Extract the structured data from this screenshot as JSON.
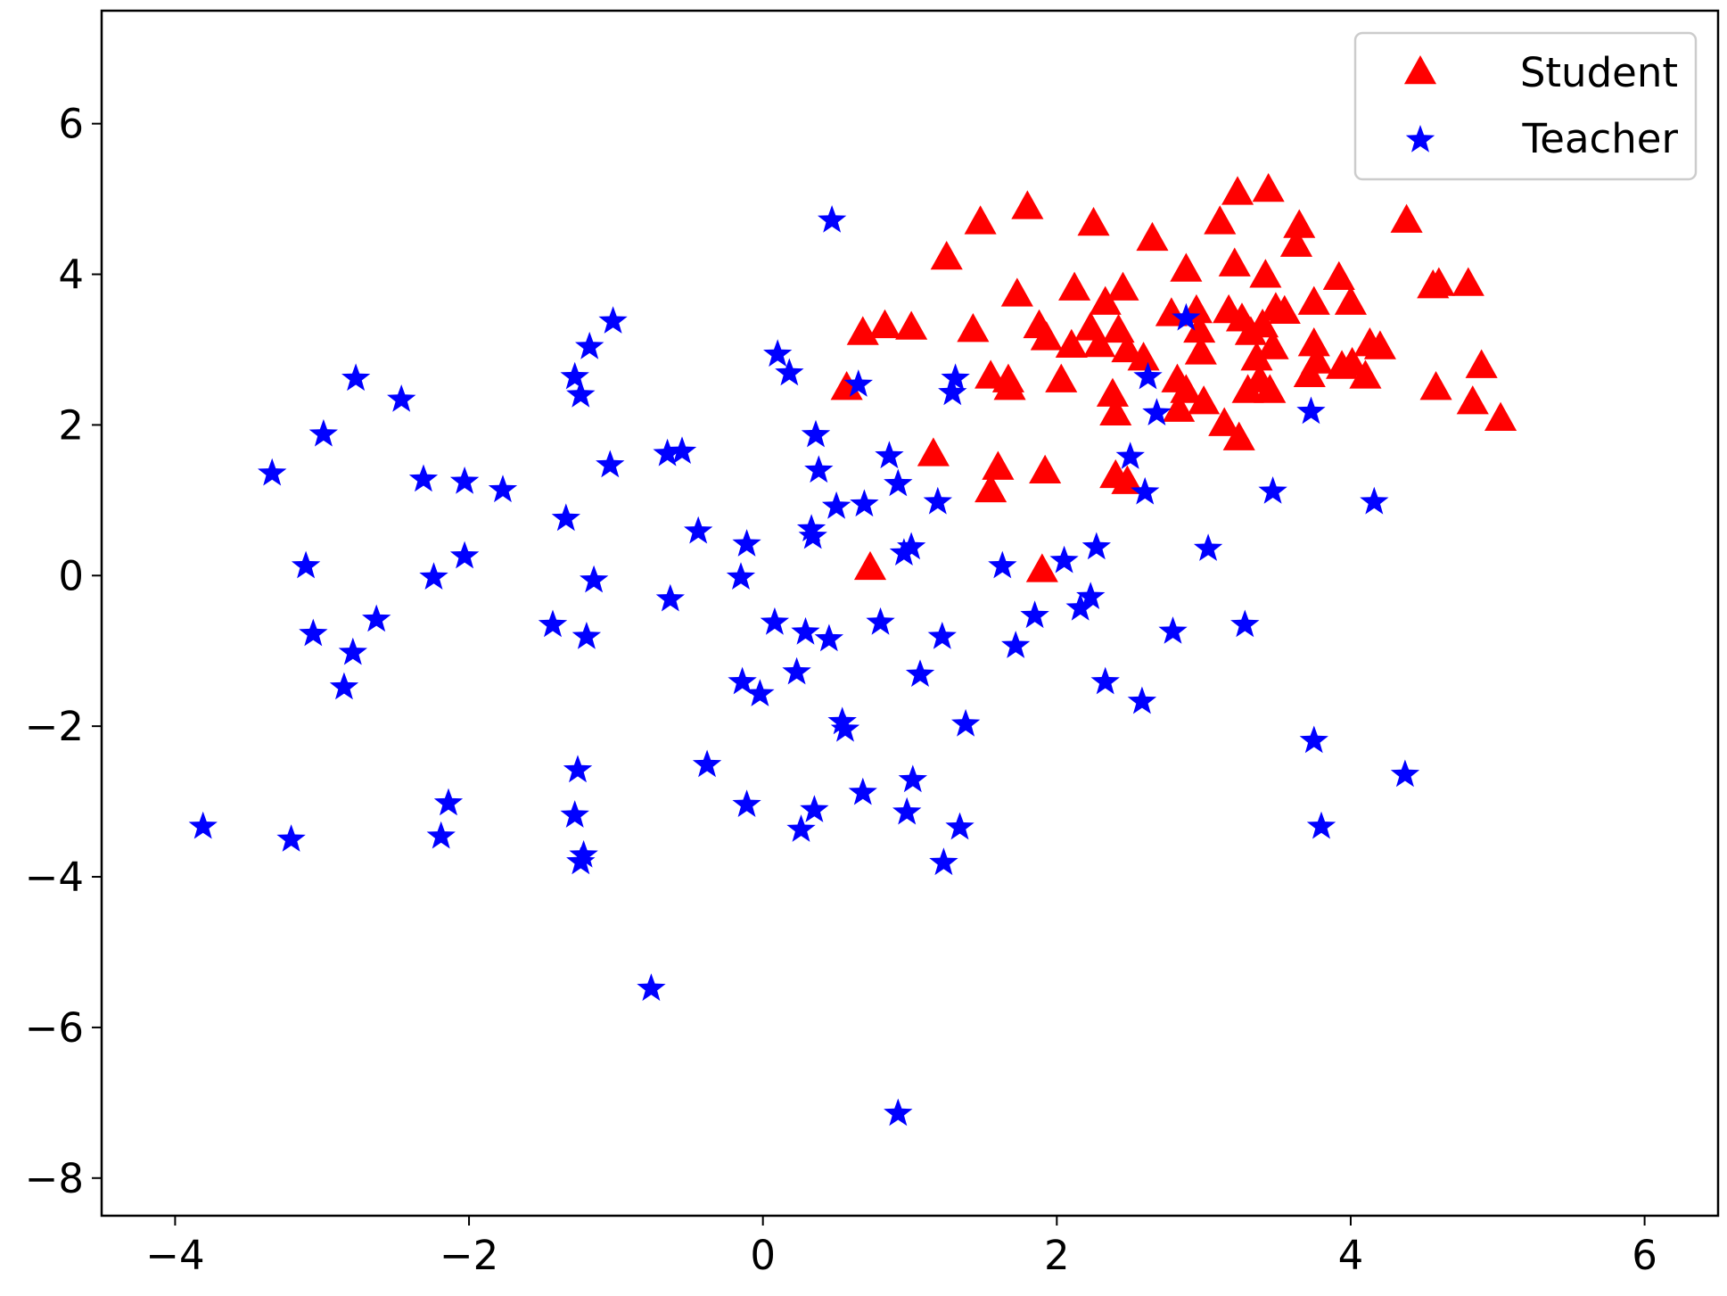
{
  "chart_data": {
    "type": "scatter",
    "xlim": [
      -4.5,
      6.5
    ],
    "ylim": [
      -8.5,
      7.5
    ],
    "xticks": [
      {
        "value": -4,
        "label": "−4"
      },
      {
        "value": -2,
        "label": "−2"
      },
      0,
      2,
      4,
      6
    ],
    "yticks": [
      {
        "value": -8,
        "label": "−8"
      },
      {
        "value": -6,
        "label": "−6"
      },
      {
        "value": -4,
        "label": "−4"
      },
      {
        "value": -2,
        "label": "−2"
      },
      0,
      2,
      4,
      6
    ],
    "legend": "upper right",
    "series": [
      {
        "name": "Student",
        "color": "#ff0000",
        "marker": "triangle",
        "x": [
          0.57,
          0.68,
          0.83,
          1.01,
          0.73,
          1.16,
          1.25,
          1.43,
          1.48,
          1.55,
          1.6,
          1.55,
          1.67,
          1.68,
          1.73,
          1.8,
          1.88,
          1.92,
          1.93,
          1.9,
          2.03,
          2.1,
          2.12,
          2.23,
          2.25,
          2.29,
          2.33,
          2.38,
          2.4,
          2.42,
          2.45,
          2.48,
          2.4,
          2.48,
          2.59,
          2.65,
          2.78,
          2.82,
          2.83,
          2.88,
          2.88,
          2.95,
          2.98,
          3.0,
          2.97,
          3.11,
          3.14,
          3.17,
          3.21,
          3.23,
          3.24,
          3.26,
          3.3,
          3.32,
          3.36,
          3.38,
          3.4,
          3.42,
          3.44,
          3.45,
          3.47,
          3.49,
          3.55,
          3.65,
          3.63,
          3.72,
          3.75,
          3.75,
          3.77,
          3.92,
          3.94,
          4.0,
          4.01,
          4.1,
          4.13,
          4.2,
          4.38,
          4.56,
          4.6,
          4.58,
          4.8,
          4.83,
          4.89,
          5.02
        ],
        "y": [
          2.49,
          3.22,
          3.31,
          3.29,
          0.1,
          1.61,
          4.22,
          3.26,
          4.69,
          2.64,
          1.43,
          1.13,
          2.59,
          2.49,
          3.73,
          4.89,
          3.31,
          1.38,
          3.15,
          0.07,
          2.59,
          3.05,
          3.81,
          3.28,
          4.67,
          3.06,
          3.62,
          2.4,
          2.15,
          3.25,
          3.81,
          2.99,
          1.32,
          1.24,
          2.88,
          4.47,
          3.47,
          2.59,
          2.2,
          4.06,
          2.45,
          3.51,
          2.96,
          2.3,
          3.25,
          4.69,
          2.01,
          3.51,
          4.13,
          5.08,
          1.82,
          3.4,
          2.45,
          3.22,
          2.88,
          2.59,
          3.32,
          3.98,
          5.12,
          2.45,
          3.03,
          3.54,
          3.5,
          4.64,
          4.39,
          2.66,
          3.62,
          3.07,
          2.84,
          3.95,
          2.77,
          3.62,
          2.81,
          2.64,
          3.07,
          3.03,
          4.71,
          3.84,
          3.87,
          2.49,
          3.87,
          2.3,
          2.78,
          2.08
        ]
      },
      {
        "name": "Teacher",
        "color": "#0000ff",
        "marker": "star",
        "x": [
          -3.81,
          -3.34,
          -3.21,
          -3.11,
          -3.06,
          -2.99,
          -2.85,
          -2.79,
          -2.77,
          -2.63,
          -2.46,
          -2.31,
          -2.24,
          -2.19,
          -2.14,
          -2.03,
          -2.03,
          -1.77,
          -1.43,
          -1.34,
          -1.28,
          -1.28,
          -1.26,
          -1.24,
          -1.24,
          -1.22,
          -1.2,
          -1.18,
          -1.15,
          -1.04,
          -1.02,
          -0.76,
          -0.63,
          -0.65,
          -0.55,
          -0.44,
          -0.38,
          -0.15,
          -0.14,
          -0.11,
          -0.11,
          -0.02,
          0.08,
          0.1,
          0.18,
          0.23,
          0.26,
          0.29,
          0.34,
          0.33,
          0.35,
          0.36,
          0.38,
          0.45,
          0.47,
          0.5,
          0.54,
          0.56,
          0.65,
          0.68,
          0.69,
          0.8,
          0.86,
          0.92,
          0.92,
          0.96,
          0.98,
          1.01,
          1.02,
          1.07,
          1.19,
          1.22,
          1.23,
          1.29,
          1.31,
          1.34,
          1.38,
          1.63,
          1.72,
          1.85,
          2.05,
          2.16,
          2.23,
          2.27,
          2.33,
          2.5,
          2.58,
          2.6,
          2.62,
          2.68,
          2.79,
          2.88,
          3.03,
          3.28,
          3.47,
          3.73,
          3.75,
          3.8,
          4.16,
          4.37
        ],
        "y": [
          -3.31,
          1.38,
          -3.48,
          0.15,
          -0.75,
          1.9,
          -1.46,
          -1.0,
          2.64,
          -0.56,
          2.36,
          1.3,
          0.0,
          -3.44,
          -3.0,
          1.27,
          0.28,
          1.16,
          -0.63,
          0.78,
          -3.16,
          2.66,
          -2.56,
          2.42,
          -3.78,
          -3.69,
          -0.79,
          3.06,
          -0.04,
          1.49,
          3.4,
          -5.46,
          -0.29,
          1.64,
          1.67,
          0.61,
          -2.49,
          0.0,
          -1.39,
          0.44,
          -3.02,
          -1.55,
          -0.6,
          2.96,
          2.71,
          -1.26,
          -3.35,
          -0.73,
          0.54,
          0.64,
          -3.09,
          1.89,
          1.42,
          -0.82,
          4.74,
          0.94,
          -1.92,
          -2.02,
          2.56,
          -2.86,
          0.97,
          -0.6,
          1.61,
          1.24,
          -7.12,
          0.32,
          -3.12,
          0.4,
          -2.69,
          -1.29,
          1.0,
          -0.79,
          -3.79,
          2.45,
          2.64,
          -3.32,
          -1.95,
          0.15,
          -0.91,
          -0.51,
          0.22,
          -0.41,
          -0.26,
          0.4,
          -1.39,
          1.6,
          -1.65,
          1.13,
          2.66,
          2.18,
          -0.72,
          3.44,
          0.38,
          -0.63,
          1.14,
          2.2,
          -2.17,
          -3.31,
          1.0,
          -2.62
        ]
      }
    ]
  }
}
